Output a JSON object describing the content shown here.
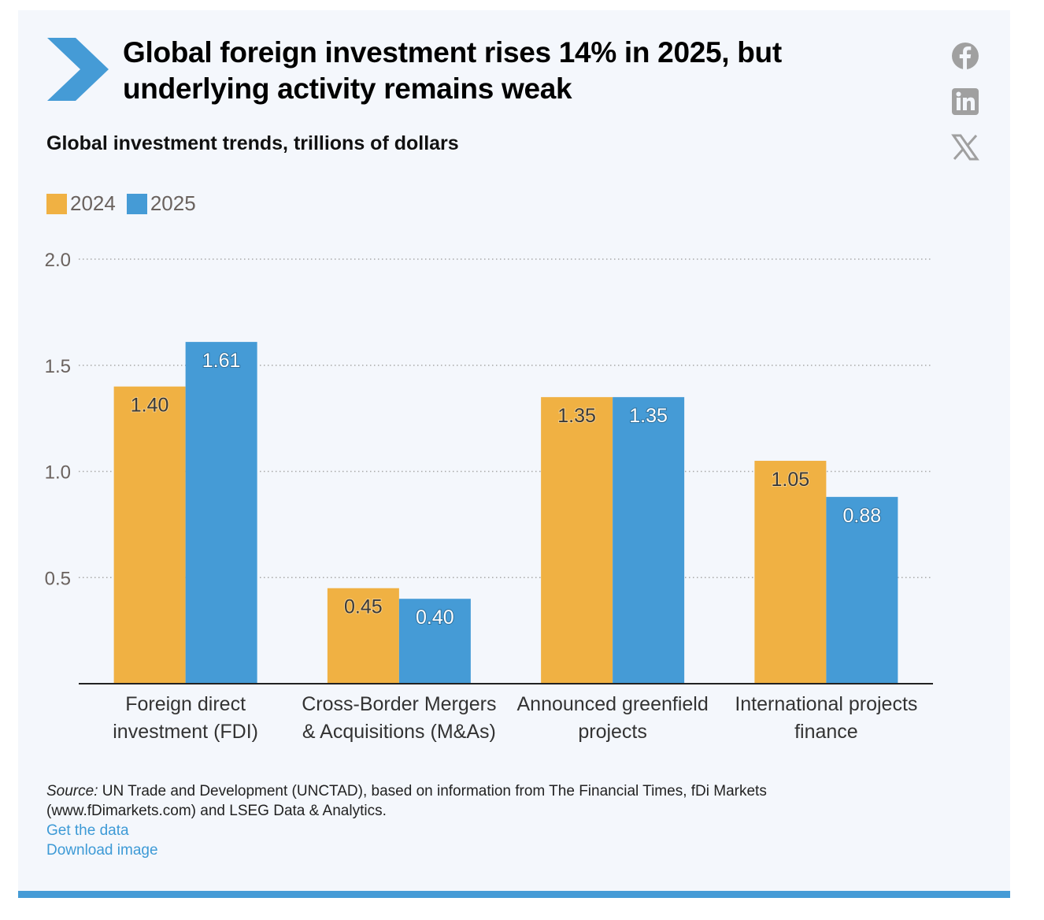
{
  "header": {
    "title_line1": "Global foreign investment rises 14% in 2025, but",
    "title_line2": "underlying activity remains weak",
    "subtitle": "Global investment trends, trillions of dollars",
    "chevron_icon": "chevron-right-icon"
  },
  "share": [
    {
      "name": "facebook-icon",
      "label": "Facebook"
    },
    {
      "name": "linkedin-icon",
      "label": "LinkedIn"
    },
    {
      "name": "x-icon",
      "label": "X"
    }
  ],
  "colors": {
    "series_2024": "#f0b143",
    "series_2025": "#459bd6",
    "accent": "#459bd6",
    "icon_gray": "#a0a0a0"
  },
  "chart_data": {
    "type": "bar",
    "title": "Global investment trends, trillions of dollars",
    "categories": [
      [
        "Foreign direct",
        "investment (FDI)"
      ],
      [
        "Cross-Border Mergers",
        "& Acquisitions (M&As)"
      ],
      [
        "Announced greenfield",
        "projects"
      ],
      [
        "International projects",
        "finance"
      ]
    ],
    "series": [
      {
        "name": "2024",
        "values": [
          1.4,
          0.45,
          1.35,
          1.05
        ],
        "labels": [
          "1.40",
          "0.45",
          "1.35",
          "1.05"
        ]
      },
      {
        "name": "2025",
        "values": [
          1.61,
          0.4,
          1.35,
          0.88
        ],
        "labels": [
          "1.61",
          "0.40",
          "1.35",
          "0.88"
        ]
      }
    ],
    "yticks": [
      "0.5",
      "1.0",
      "1.5",
      "2.0"
    ],
    "ytick_values": [
      0.5,
      1.0,
      1.5,
      2.0
    ],
    "ylim": [
      0,
      2.0
    ],
    "xlabel": "",
    "ylabel": "",
    "grid": "horizontal dotted",
    "legend": "top-left"
  },
  "footer": {
    "source_label": "Source:",
    "source_text": " UN Trade and Development (UNCTAD), based on information from The Financial Times, fDi Markets",
    "source_text2": "(www.fDimarkets.com) and LSEG Data & Analytics.",
    "get_data": "Get the data",
    "download_image": "Download image"
  }
}
